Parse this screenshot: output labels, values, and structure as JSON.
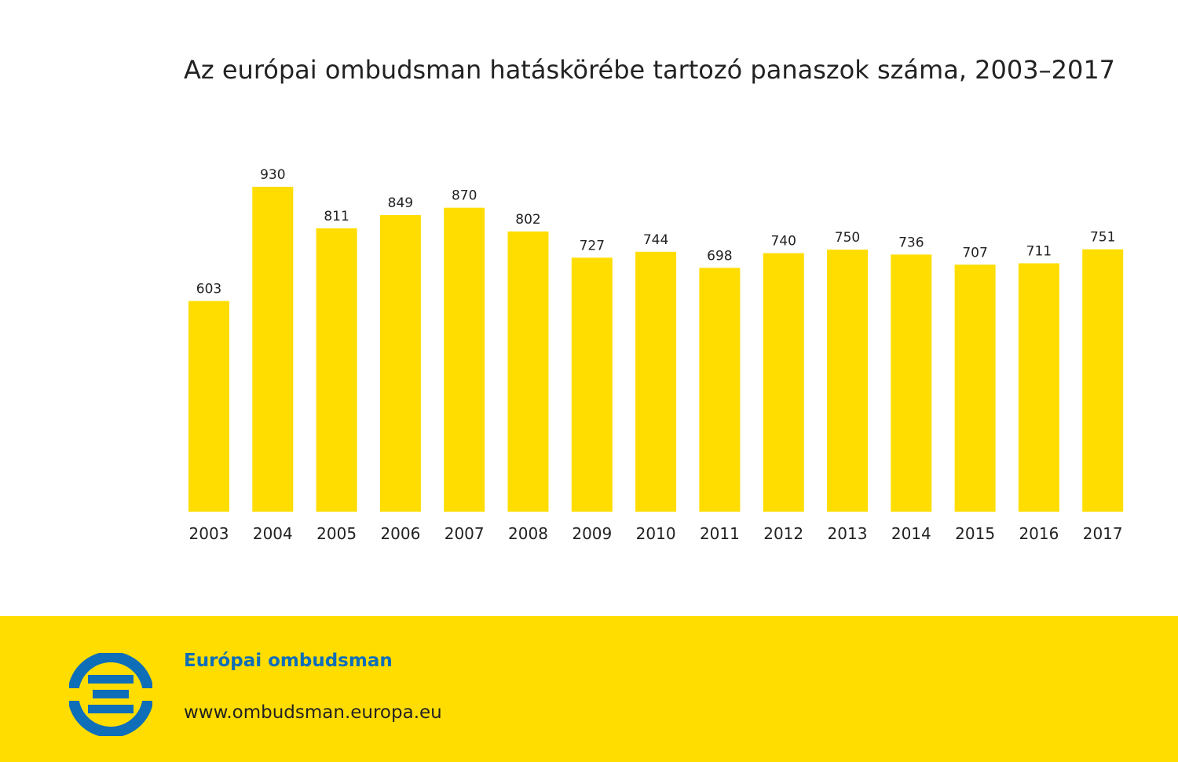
{
  "colors": {
    "bar": "#ffdd00",
    "footer_bg": "#ffdd00",
    "brand_blue": "#0e6eb8",
    "text": "#222222"
  },
  "footer": {
    "logo_icon": "european-ombudsman-logo-icon",
    "org_name": "Európai ombudsman",
    "url": "www.ombudsman.europa.eu"
  },
  "chart_data": {
    "type": "bar",
    "title": "Az európai ombudsman hatáskörébe tartozó panaszok száma, 2003–2017",
    "categories": [
      "2003",
      "2004",
      "2005",
      "2006",
      "2007",
      "2008",
      "2009",
      "2010",
      "2011",
      "2012",
      "2013",
      "2014",
      "2015",
      "2016",
      "2017"
    ],
    "values": [
      603,
      930,
      811,
      849,
      870,
      802,
      727,
      744,
      698,
      740,
      750,
      736,
      707,
      711,
      751
    ],
    "xlabel": "",
    "ylabel": "",
    "ylim": [
      0,
      930
    ],
    "grid": false,
    "legend": "none",
    "data_labels": true
  }
}
